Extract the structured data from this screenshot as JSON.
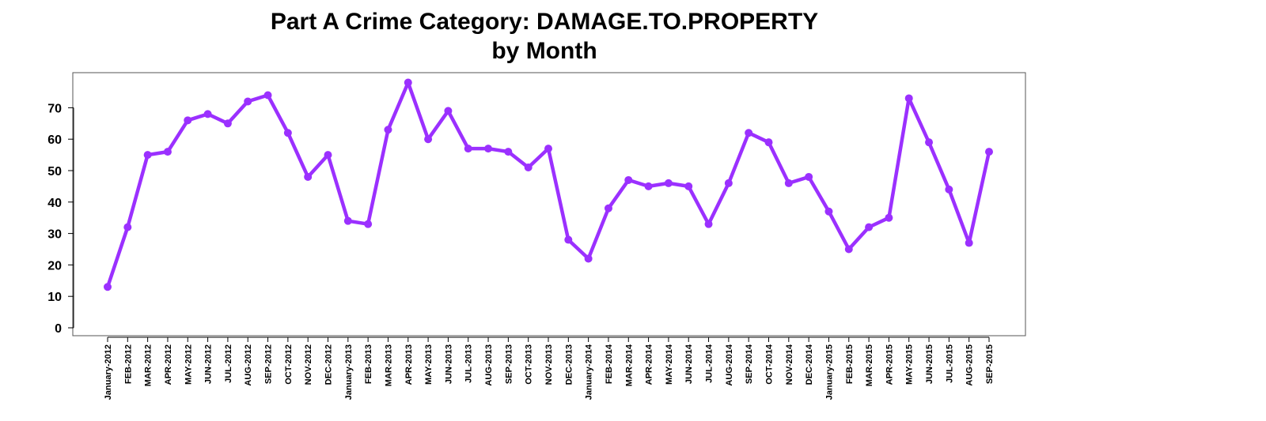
{
  "chart_data": {
    "type": "line",
    "title_line1": "Part A Crime Category:  DAMAGE.TO.PROPERTY",
    "title_line2": "by Month",
    "xlabel": "",
    "ylabel": "",
    "ylim": [
      0,
      80
    ],
    "yticks": [
      0,
      10,
      20,
      30,
      40,
      50,
      60,
      70
    ],
    "grid": false,
    "line_color": "#9b30ff",
    "categories": [
      "January-2012",
      "FEB-2012",
      "MAR-2012",
      "APR-2012",
      "MAY-2012",
      "JUN-2012",
      "JUL-2012",
      "AUG-2012",
      "SEP-2012",
      "OCT-2012",
      "NOV-2012",
      "DEC-2012",
      "January-2013",
      "FEB-2013",
      "MAR-2013",
      "APR-2013",
      "MAY-2013",
      "JUN-2013",
      "JUL-2013",
      "AUG-2013",
      "SEP-2013",
      "OCT-2013",
      "NOV-2013",
      "DEC-2013",
      "January-2014",
      "FEB-2014",
      "MAR-2014",
      "APR-2014",
      "MAY-2014",
      "JUN-2014",
      "JUL-2014",
      "AUG-2014",
      "SEP-2014",
      "OCT-2014",
      "NOV-2014",
      "DEC-2014",
      "January-2015",
      "FEB-2015",
      "MAR-2015",
      "APR-2015",
      "MAY-2015",
      "JUN-2015",
      "JUL-2015",
      "AUG-2015",
      "SEP-2015"
    ],
    "values": [
      13,
      32,
      55,
      56,
      66,
      68,
      65,
      72,
      74,
      62,
      48,
      55,
      34,
      33,
      63,
      78,
      60,
      69,
      57,
      57,
      56,
      51,
      57,
      28,
      22,
      38,
      47,
      45,
      46,
      45,
      33,
      46,
      62,
      59,
      46,
      48,
      37,
      25,
      32,
      35,
      73,
      59,
      44,
      27,
      56
    ]
  }
}
